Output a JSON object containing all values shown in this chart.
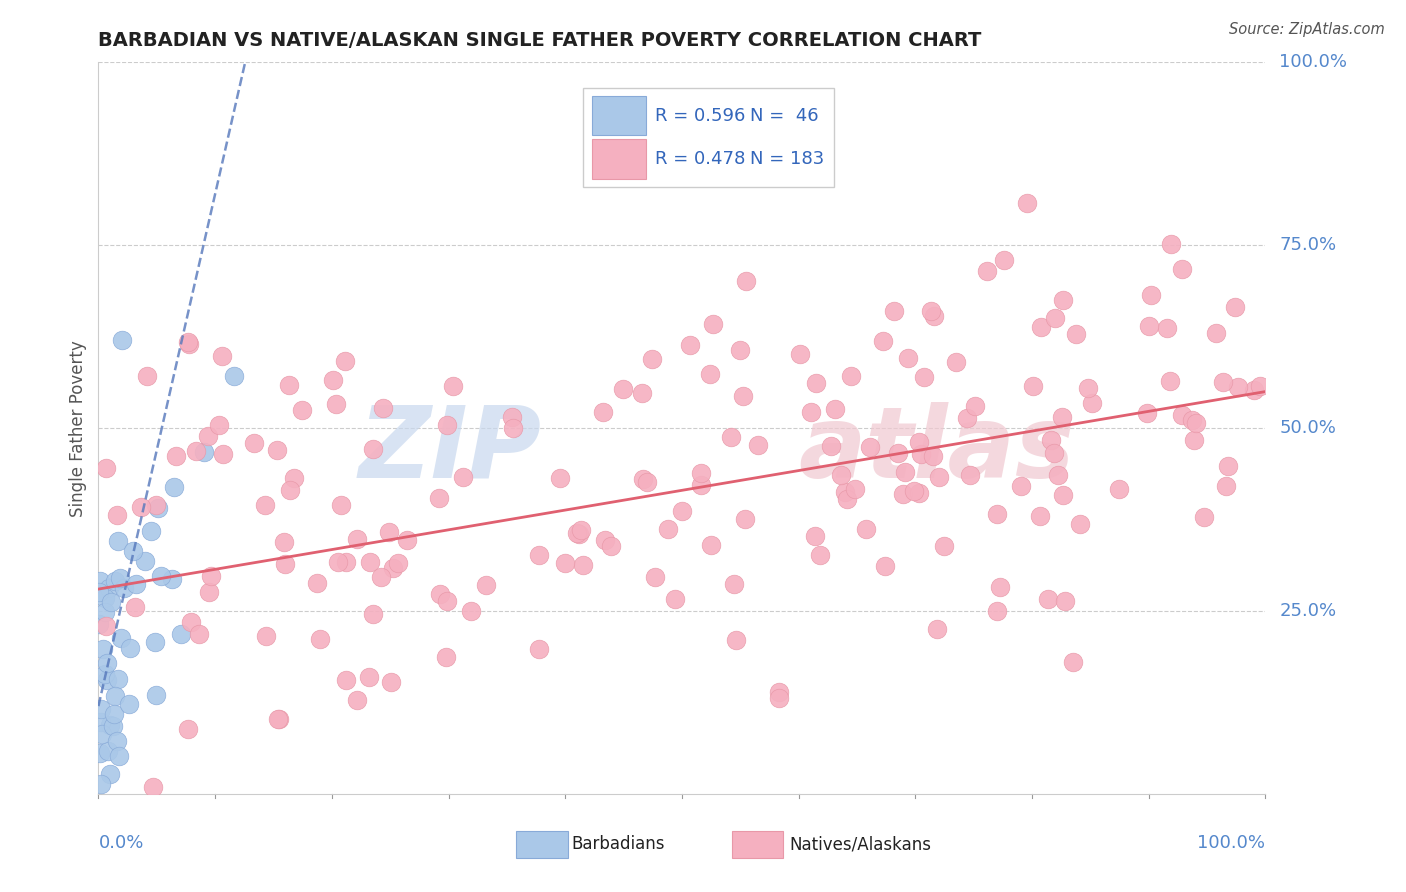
{
  "title": "BARBADIAN VS NATIVE/ALASKAN SINGLE FATHER POVERTY CORRELATION CHART",
  "source": "Source: ZipAtlas.com",
  "ylabel": "Single Father Poverty",
  "legend_barbadians": "Barbadians",
  "legend_natives": "Natives/Alaskans",
  "r_barbadians": 0.596,
  "n_barbadians": 46,
  "r_natives": 0.478,
  "n_natives": 183,
  "barbadian_color": "#aac8e8",
  "native_color": "#f5b0c0",
  "barbadian_line_color": "#5577bb",
  "native_line_color": "#e06070",
  "watermark_zip_color": "#c8d8ee",
  "watermark_atlas_color": "#f0c8d0",
  "title_color": "#222222",
  "source_color": "#555555",
  "label_color": "#5588cc",
  "ylabel_color": "#555555",
  "grid_color": "#cccccc",
  "spine_color": "#cccccc",
  "legend_text_color": "#3366bb"
}
